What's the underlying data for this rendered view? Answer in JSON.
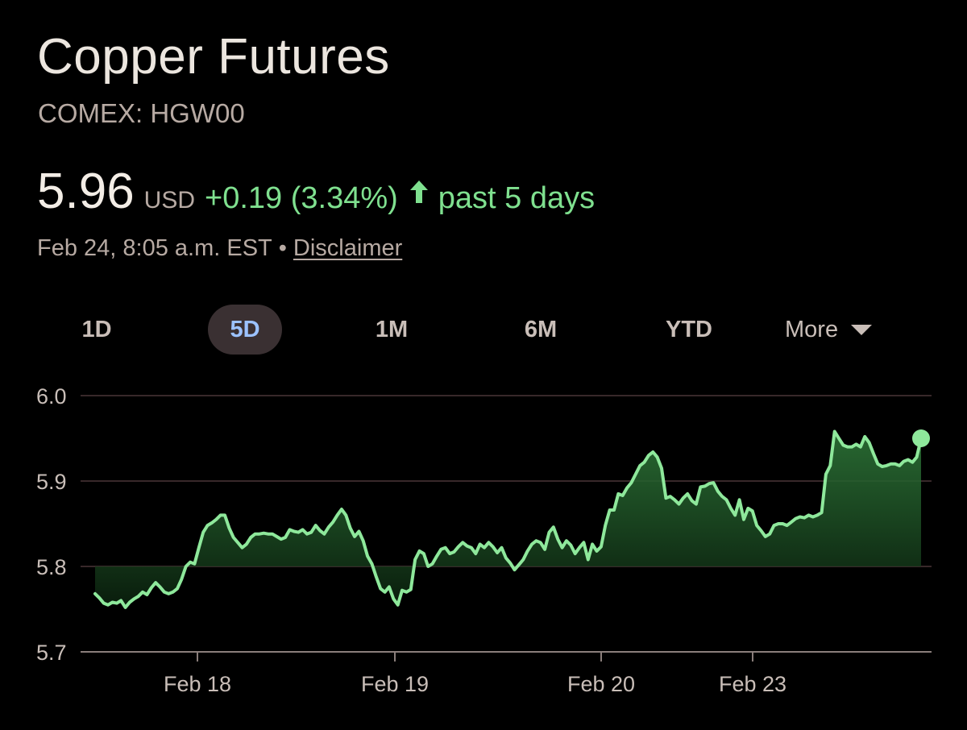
{
  "header": {
    "title": "Copper Futures",
    "exchange": "COMEX: HGW00"
  },
  "quote": {
    "price": "5.96",
    "currency": "USD",
    "change": "+0.19 (3.34%)",
    "period": "past 5 days",
    "arrow_icon": "arrow-up-icon"
  },
  "meta": {
    "timestamp": "Feb 24, 8:05 a.m. EST",
    "separator": "•",
    "disclaimer": "Disclaimer"
  },
  "ranges": {
    "items": [
      "1D",
      "5D",
      "1M",
      "6M",
      "YTD"
    ],
    "selected": "5D",
    "more_label": "More",
    "more_icon": "caret-down-icon"
  },
  "colors": {
    "background": "#000000",
    "positive": "#7fe08f",
    "line": "#8ee89b",
    "selected_tab_bg": "#3a3032",
    "selected_tab_text": "#9cc2ff",
    "muted_text": "#b7aaa3",
    "gridline": "#4a3638"
  },
  "chart_data": {
    "type": "area",
    "title": "",
    "xlabel": "",
    "ylabel": "",
    "ylim": [
      5.7,
      6.0
    ],
    "yticks": [
      5.7,
      5.8,
      5.9,
      6.0
    ],
    "ytick_labels": [
      "5.7",
      "5.8",
      "5.9",
      "6.0"
    ],
    "xtick_labels": [
      "Feb 18",
      "Feb 19",
      "Feb 20",
      "Feb 23"
    ],
    "grid": true,
    "baseline": 5.8,
    "last_value": 5.95,
    "series": [
      {
        "values": [
          5.768,
          5.763,
          5.757,
          5.755,
          5.758,
          5.757,
          5.76,
          5.752,
          5.758,
          5.762,
          5.765,
          5.77,
          5.767,
          5.775,
          5.781,
          5.776,
          5.77,
          5.768,
          5.77,
          5.774,
          5.785,
          5.8,
          5.805,
          5.803,
          5.822,
          5.84,
          5.848,
          5.851,
          5.855,
          5.86,
          5.86,
          5.845,
          5.834,
          5.828,
          5.822,
          5.826,
          5.834,
          5.838,
          5.838,
          5.839,
          5.838,
          5.838,
          5.835,
          5.832,
          5.834,
          5.843,
          5.841,
          5.84,
          5.843,
          5.838,
          5.84,
          5.848,
          5.842,
          5.838,
          5.846,
          5.852,
          5.86,
          5.867,
          5.86,
          5.845,
          5.835,
          5.841,
          5.83,
          5.812,
          5.803,
          5.788,
          5.774,
          5.77,
          5.776,
          5.762,
          5.755,
          5.772,
          5.77,
          5.773,
          5.808,
          5.818,
          5.815,
          5.8,
          5.803,
          5.812,
          5.82,
          5.822,
          5.815,
          5.817,
          5.823,
          5.828,
          5.824,
          5.822,
          5.815,
          5.826,
          5.822,
          5.828,
          5.823,
          5.816,
          5.822,
          5.81,
          5.804,
          5.796,
          5.802,
          5.808,
          5.818,
          5.826,
          5.83,
          5.828,
          5.82,
          5.84,
          5.846,
          5.832,
          5.822,
          5.83,
          5.825,
          5.815,
          5.822,
          5.828,
          5.808,
          5.826,
          5.818,
          5.823,
          5.848,
          5.866,
          5.866,
          5.885,
          5.883,
          5.892,
          5.898,
          5.908,
          5.918,
          5.922,
          5.93,
          5.934,
          5.928,
          5.915,
          5.88,
          5.882,
          5.878,
          5.873,
          5.88,
          5.885,
          5.877,
          5.873,
          5.893,
          5.894,
          5.897,
          5.898,
          5.888,
          5.882,
          5.878,
          5.868,
          5.86,
          5.878,
          5.855,
          5.868,
          5.865,
          5.848,
          5.842,
          5.835,
          5.838,
          5.848,
          5.85,
          5.85,
          5.848,
          5.852,
          5.856,
          5.858,
          5.857,
          5.86,
          5.858,
          5.86,
          5.863,
          5.908,
          5.918,
          5.958,
          5.95,
          5.942,
          5.94,
          5.94,
          5.943,
          5.94,
          5.952,
          5.945,
          5.932,
          5.92,
          5.917,
          5.918,
          5.92,
          5.92,
          5.918,
          5.923,
          5.925,
          5.922,
          5.928,
          5.95
        ]
      }
    ]
  }
}
